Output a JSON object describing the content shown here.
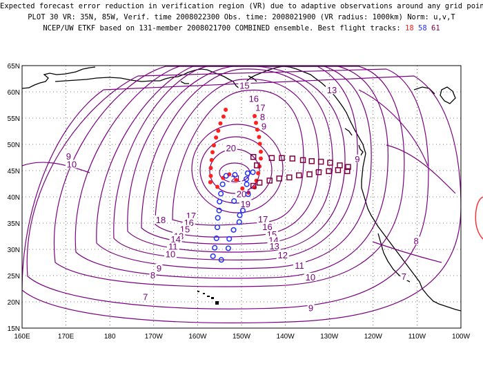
{
  "header": {
    "line1": "Expected forecast error reduction in verification region (VR) due to adaptive observations around any grid point.",
    "line2": "PLOT 30 VR: 35N, 85W, Verif. time 2008022300 Obs. time: 2008021900 (VR radius: 1000km) Norm: u,v,T",
    "line3_prefix": "NCEP/UW ETKF based on 131-member 2008021700 COMBINED ensemble.  Best flight tracks:",
    "track_a": "18",
    "track_b": "58",
    "track_c": "61"
  },
  "axes": {
    "lat_labels": [
      "65N",
      "60N",
      "55N",
      "50N",
      "45N",
      "40N",
      "35N",
      "30N",
      "25N",
      "20N",
      "15N"
    ],
    "lon_labels": [
      "160E",
      "170E",
      "180",
      "170W",
      "160W",
      "150W",
      "140W",
      "130W",
      "120W",
      "110W",
      "100W"
    ]
  },
  "contour_labels": [
    {
      "text": "15",
      "lon": -149.3,
      "lat": 61.0
    },
    {
      "text": "16",
      "lon": -147.2,
      "lat": 58.5
    },
    {
      "text": "17",
      "lon": -145.7,
      "lat": 56.8
    },
    {
      "text": "8",
      "lon": -145.2,
      "lat": 55.0
    },
    {
      "text": "9",
      "lon": -144.9,
      "lat": 53.2
    },
    {
      "text": "20",
      "lon": -152.4,
      "lat": 49.1
    },
    {
      "text": "21",
      "lon": -151.3,
      "lat": 43.3
    },
    {
      "text": "20",
      "lon": -150.0,
      "lat": 40.3
    },
    {
      "text": "19",
      "lon": -149.1,
      "lat": 38.4
    },
    {
      "text": "18",
      "lon": -168.4,
      "lat": 35.4
    },
    {
      "text": "17",
      "lon": -161.5,
      "lat": 36.2
    },
    {
      "text": "16",
      "lon": -162.0,
      "lat": 34.9
    },
    {
      "text": "15",
      "lon": -162.9,
      "lat": 33.6
    },
    {
      "text": "13",
      "lon": -164.3,
      "lat": 32.3
    },
    {
      "text": "14",
      "lon": -165.0,
      "lat": 31.7
    },
    {
      "text": "11",
      "lon": -165.6,
      "lat": 30.3
    },
    {
      "text": "10",
      "lon": -166.2,
      "lat": 28.9
    },
    {
      "text": "9",
      "lon": -168.8,
      "lat": 26.2
    },
    {
      "text": "8",
      "lon": -170.2,
      "lat": 24.9
    },
    {
      "text": "7",
      "lon": -171.9,
      "lat": 20.7
    },
    {
      "text": "17",
      "lon": -145.1,
      "lat": 35.5
    },
    {
      "text": "16",
      "lon": -144.1,
      "lat": 34.1
    },
    {
      "text": "15",
      "lon": -143.1,
      "lat": 32.6
    },
    {
      "text": "14",
      "lon": -142.7,
      "lat": 31.5
    },
    {
      "text": "13",
      "lon": -142.5,
      "lat": 30.4
    },
    {
      "text": "12",
      "lon": -140.6,
      "lat": 28.7
    },
    {
      "text": "11",
      "lon": -136.8,
      "lat": 26.7
    },
    {
      "text": "10",
      "lon": -134.3,
      "lat": 24.5
    },
    {
      "text": "9",
      "lon": -134.2,
      "lat": 18.6
    },
    {
      "text": "13",
      "lon": -129.4,
      "lat": 60.1
    },
    {
      "text": "9",
      "lon": -123.6,
      "lat": 47.0
    },
    {
      "text": "10",
      "lon": -188.7,
      "lat": 46.0
    },
    {
      "text": "9",
      "lon": -189.4,
      "lat": 47.5
    },
    {
      "text": "8",
      "lon": -110.2,
      "lat": 31.4
    },
    {
      "text": "7",
      "lon": -113.0,
      "lat": 24.6
    }
  ],
  "tracks": {
    "track18": {
      "label": "18",
      "color": "#ff2020",
      "points": [
        [
          -153.6,
          56.6
        ],
        [
          -154.1,
          55.3
        ],
        [
          -154.8,
          54.0
        ],
        [
          -155.3,
          52.6
        ],
        [
          -155.8,
          51.3
        ],
        [
          -156.3,
          49.8
        ],
        [
          -156.6,
          48.5
        ],
        [
          -156.8,
          47.0
        ],
        [
          -157.0,
          45.5
        ],
        [
          -157.0,
          44.0
        ],
        [
          -157.1,
          42.8
        ],
        [
          -147.0,
          55.4
        ],
        [
          -146.7,
          54.1
        ],
        [
          -146.4,
          52.8
        ],
        [
          -146.0,
          51.4
        ],
        [
          -145.8,
          50.1
        ],
        [
          -145.6,
          48.6
        ],
        [
          -145.6,
          47.3
        ],
        [
          -145.9,
          45.8
        ],
        [
          -146.2,
          44.5
        ],
        [
          -146.6,
          43.1
        ],
        [
          -147.0,
          41.8
        ],
        [
          -148.4,
          40.8
        ],
        [
          -149.8,
          41.6
        ],
        [
          -151.2,
          43.2
        ],
        [
          -152.8,
          44.3
        ],
        [
          -154.2,
          43.6
        ],
        [
          -155.5,
          41.9
        ]
      ]
    },
    "track58": {
      "label": "58",
      "color": "#2030ff",
      "points": [
        [
          -151.5,
          44.2
        ],
        [
          -153.5,
          44.0
        ],
        [
          -148.6,
          44.5
        ],
        [
          -147.4,
          44.7
        ],
        [
          -148.9,
          43.4
        ],
        [
          -148.8,
          42.4
        ],
        [
          -154.3,
          42.4
        ],
        [
          -154.7,
          40.6
        ],
        [
          -148.5,
          40.5
        ],
        [
          -151.7,
          39.2
        ],
        [
          -155.0,
          39.1
        ],
        [
          -149.7,
          37.4
        ],
        [
          -155.1,
          37.4
        ],
        [
          -150.4,
          36.5
        ],
        [
          -155.4,
          36.0
        ],
        [
          -150.5,
          35.2
        ],
        [
          -155.5,
          34.2
        ],
        [
          -151.8,
          33.7
        ],
        [
          -155.7,
          32.1
        ],
        [
          -152.8,
          32.0
        ],
        [
          -156.1,
          30.3
        ],
        [
          -153.0,
          30.2
        ],
        [
          -156.5,
          28.7
        ],
        [
          -154.6,
          28.0
        ]
      ]
    },
    "track61": {
      "label": "61",
      "color": "#800040",
      "points": [
        [
          -146.5,
          46.0
        ],
        [
          -147.3,
          47.6
        ],
        [
          -143.1,
          47.4
        ],
        [
          -140.8,
          47.4
        ],
        [
          -138.4,
          47.3
        ],
        [
          -136.0,
          47.0
        ],
        [
          -134.0,
          46.8
        ],
        [
          -131.9,
          46.7
        ],
        [
          -129.8,
          46.5
        ],
        [
          -127.6,
          46.0
        ],
        [
          -125.7,
          45.7
        ],
        [
          -125.9,
          44.9
        ],
        [
          -128.0,
          45.1
        ],
        [
          -130.1,
          44.9
        ],
        [
          -132.4,
          44.7
        ],
        [
          -134.5,
          44.3
        ],
        [
          -136.9,
          44.1
        ],
        [
          -139.1,
          43.7
        ],
        [
          -141.4,
          43.5
        ],
        [
          -143.6,
          43.1
        ],
        [
          -145.9,
          42.7
        ],
        [
          -147.3,
          42.1
        ]
      ]
    }
  }
}
